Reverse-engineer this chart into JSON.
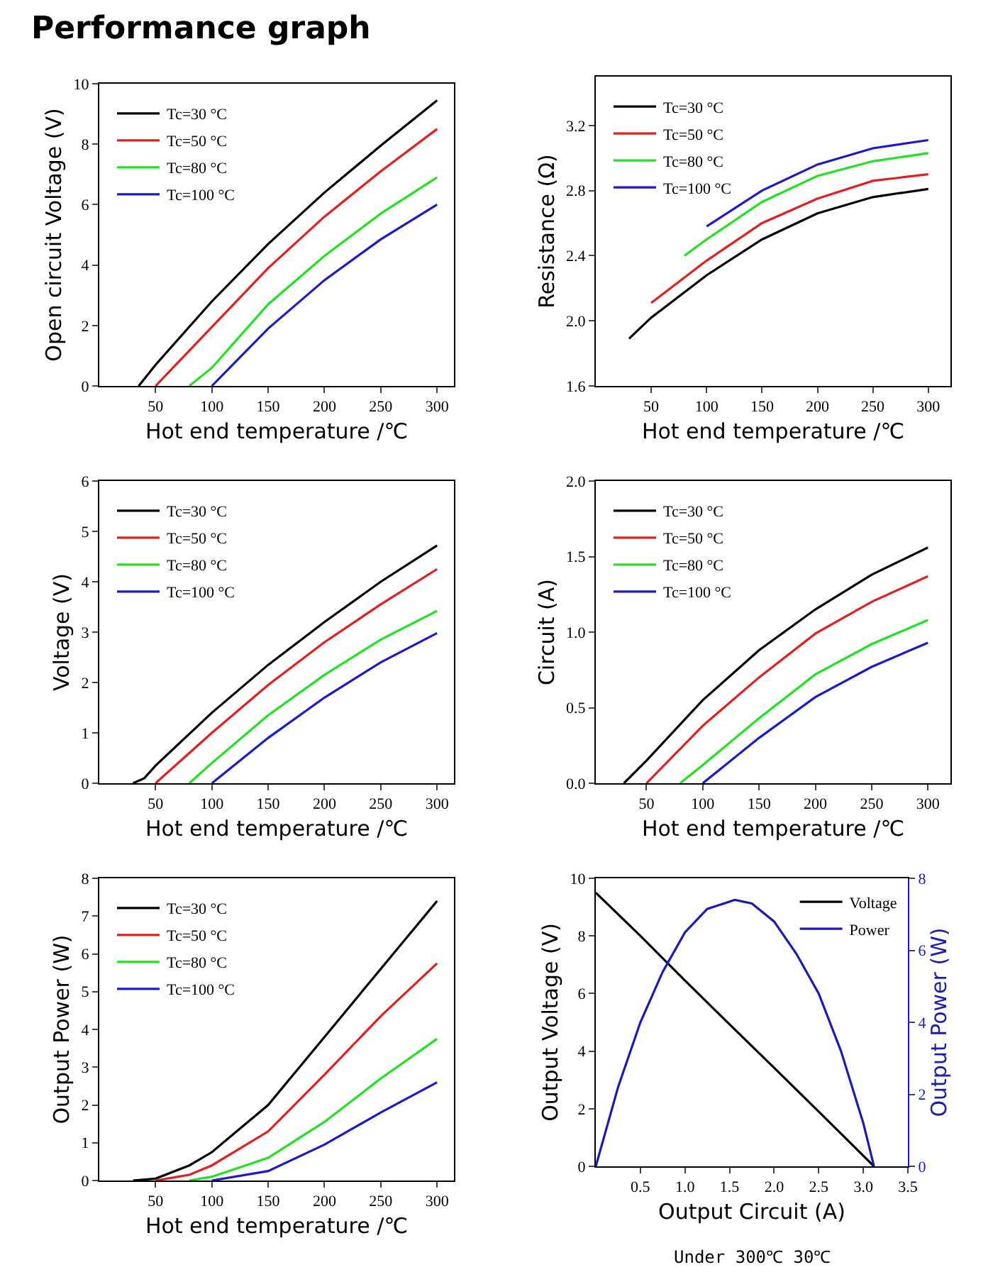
{
  "chart_data": [
    {
      "type": "line",
      "title": "Performance graph",
      "xlabel": "Hot end temperature /℃",
      "ylabel": "Open circuit Voltage (V)",
      "xlim": [
        0,
        315
      ],
      "xticks": [
        50,
        100,
        150,
        200,
        250,
        300
      ],
      "ylim": [
        0,
        10
      ],
      "yticks": [
        0,
        2,
        4,
        6,
        8,
        10
      ],
      "legend": "top left",
      "series": [
        {
          "name": "Tc=30 °C",
          "color": "#000000",
          "x": [
            35,
            50,
            100,
            150,
            200,
            250,
            300
          ],
          "values": [
            0,
            0.7,
            2.8,
            4.7,
            6.4,
            7.95,
            9.45
          ]
        },
        {
          "name": "Tc=50 °C",
          "color": "#e0201e",
          "x": [
            50,
            100,
            150,
            200,
            250,
            300
          ],
          "values": [
            0,
            1.95,
            3.9,
            5.6,
            7.1,
            8.5
          ]
        },
        {
          "name": "Tc=80 °C",
          "color": "#22e022",
          "x": [
            80,
            100,
            150,
            200,
            250,
            300
          ],
          "values": [
            0,
            0.6,
            2.7,
            4.3,
            5.7,
            6.9
          ]
        },
        {
          "name": "Tc=100 °C",
          "color": "#1a1ac8",
          "x": [
            100,
            150,
            200,
            250,
            300
          ],
          "values": [
            0,
            1.9,
            3.5,
            4.85,
            6.0
          ]
        }
      ]
    },
    {
      "type": "line",
      "xlabel": "Hot end temperature /℃",
      "ylabel": "Resistance (Ω)",
      "xlim": [
        0,
        320
      ],
      "xticks": [
        50,
        100,
        150,
        200,
        250,
        300
      ],
      "ylim": [
        1.6,
        3.5
      ],
      "yticks": [
        1.6,
        {
          "value": 2,
          "label": "2.0"
        },
        2.4,
        2.8,
        3.2
      ],
      "legend": "top left",
      "series": [
        {
          "name": "Tc=30 °C",
          "color": "#000000",
          "x": [
            30,
            50,
            100,
            150,
            200,
            250,
            300
          ],
          "values": [
            1.89,
            2.02,
            2.28,
            2.5,
            2.66,
            2.76,
            2.81
          ]
        },
        {
          "name": "Tc=50 °C",
          "color": "#e0201e",
          "x": [
            50,
            100,
            150,
            200,
            250,
            300
          ],
          "values": [
            2.11,
            2.37,
            2.6,
            2.75,
            2.86,
            2.9
          ]
        },
        {
          "name": "Tc=80 °C",
          "color": "#22e022",
          "x": [
            80,
            100,
            150,
            200,
            250,
            300
          ],
          "values": [
            2.4,
            2.5,
            2.73,
            2.89,
            2.98,
            3.03
          ]
        },
        {
          "name": "Tc=100 °C",
          "color": "#1a1ac8",
          "x": [
            100,
            150,
            200,
            250,
            300
          ],
          "values": [
            2.58,
            2.8,
            2.96,
            3.06,
            3.11
          ]
        }
      ]
    },
    {
      "type": "line",
      "xlabel": "Hot end temperature /℃",
      "ylabel": "Voltage (V)",
      "xlim": [
        0,
        315
      ],
      "xticks": [
        50,
        100,
        150,
        200,
        250,
        300
      ],
      "ylim": [
        0,
        6
      ],
      "yticks": [
        0,
        1,
        2,
        3,
        4,
        5,
        6
      ],
      "legend": "top left",
      "series": [
        {
          "name": "Tc=30 °C",
          "color": "#000000",
          "x": [
            30,
            40,
            50,
            100,
            150,
            200,
            250,
            300
          ],
          "values": [
            0,
            0.1,
            0.35,
            1.4,
            2.35,
            3.2,
            4.0,
            4.72
          ]
        },
        {
          "name": "Tc=50 °C",
          "color": "#e0201e",
          "x": [
            50,
            100,
            150,
            200,
            250,
            300
          ],
          "values": [
            0,
            1.0,
            1.95,
            2.8,
            3.55,
            4.25
          ]
        },
        {
          "name": "Tc=80 °C",
          "color": "#22e022",
          "x": [
            80,
            100,
            150,
            200,
            250,
            300
          ],
          "values": [
            0,
            0.4,
            1.35,
            2.15,
            2.85,
            3.42
          ]
        },
        {
          "name": "Tc=100 °C",
          "color": "#1a1ac8",
          "x": [
            100,
            150,
            200,
            250,
            300
          ],
          "values": [
            0,
            0.9,
            1.7,
            2.4,
            2.98
          ]
        }
      ]
    },
    {
      "type": "line",
      "xlabel": "Hot end temperature /℃",
      "ylabel": "Circuit (A)",
      "xlim": [
        5,
        320
      ],
      "xticks": [
        50,
        100,
        150,
        200,
        250,
        300
      ],
      "ylim": [
        0,
        2
      ],
      "yticks": [
        {
          "value": 0,
          "label": "0.0"
        },
        0.5,
        {
          "value": 1,
          "label": "1.0"
        },
        1.5,
        {
          "value": 2,
          "label": "2.0"
        }
      ],
      "legend": "top left",
      "series": [
        {
          "name": "Tc=30 °C",
          "color": "#000000",
          "x": [
            30,
            50,
            100,
            150,
            200,
            250,
            300
          ],
          "values": [
            0,
            0.15,
            0.55,
            0.88,
            1.15,
            1.38,
            1.56
          ]
        },
        {
          "name": "Tc=50 °C",
          "color": "#e0201e",
          "x": [
            50,
            100,
            150,
            200,
            250,
            300
          ],
          "values": [
            0,
            0.38,
            0.7,
            0.99,
            1.2,
            1.37
          ]
        },
        {
          "name": "Tc=80 °C",
          "color": "#22e022",
          "x": [
            80,
            100,
            150,
            200,
            250,
            300
          ],
          "values": [
            0,
            0.12,
            0.43,
            0.72,
            0.92,
            1.08
          ]
        },
        {
          "name": "Tc=100 °C",
          "color": "#1a1ac8",
          "x": [
            100,
            150,
            200,
            250,
            300
          ],
          "values": [
            0,
            0.3,
            0.57,
            0.77,
            0.93
          ]
        }
      ]
    },
    {
      "type": "line",
      "xlabel": "Hot end temperature /℃",
      "ylabel": "Output Power (W)",
      "xlim": [
        0,
        315
      ],
      "xticks": [
        50,
        100,
        150,
        200,
        250,
        300
      ],
      "ylim": [
        0,
        8
      ],
      "yticks": [
        0,
        1,
        2,
        3,
        4,
        5,
        6,
        7,
        8
      ],
      "legend": "top left",
      "series": [
        {
          "name": "Tc=30 °C",
          "color": "#000000",
          "x": [
            30,
            50,
            80,
            100,
            150,
            200,
            250,
            300
          ],
          "values": [
            0,
            0.05,
            0.4,
            0.75,
            2.0,
            3.8,
            5.6,
            7.4
          ]
        },
        {
          "name": "Tc=50 °C",
          "color": "#e0201e",
          "x": [
            50,
            80,
            100,
            150,
            200,
            250,
            300
          ],
          "values": [
            0,
            0.15,
            0.4,
            1.3,
            2.8,
            4.35,
            5.75
          ]
        },
        {
          "name": "Tc=80 °C",
          "color": "#22e022",
          "x": [
            80,
            100,
            150,
            200,
            250,
            300
          ],
          "values": [
            0,
            0.1,
            0.6,
            1.55,
            2.7,
            3.75
          ]
        },
        {
          "name": "Tc=100 °C",
          "color": "#1a1ac8",
          "x": [
            100,
            150,
            200,
            250,
            300
          ],
          "values": [
            0,
            0.25,
            0.95,
            1.8,
            2.6
          ]
        }
      ]
    },
    {
      "type": "line",
      "xlabel": "Output Circuit (A)",
      "ylabel": "Output Voltage (V)",
      "y2label": "Output Power (W)",
      "xlim": [
        0,
        3.5
      ],
      "xticks": [
        0.5,
        {
          "value": 1,
          "label": "1.0"
        },
        1.5,
        {
          "value": 2,
          "label": "2.0"
        },
        2.5,
        {
          "value": 3,
          "label": "3.0"
        },
        3.5
      ],
      "ylim": [
        0,
        10
      ],
      "yticks": [
        0,
        2,
        4,
        6,
        8,
        10
      ],
      "y2lim": [
        0,
        8
      ],
      "y2ticks": [
        0,
        2,
        4,
        6,
        8
      ],
      "legend": "top right",
      "annotations": [
        "Under 300℃ 30℃"
      ],
      "series": [
        {
          "name": "Voltage",
          "color": "#000000",
          "x": [
            0,
            0.5,
            1,
            1.5,
            2,
            2.5,
            3.12
          ],
          "values": [
            9.5,
            8.0,
            6.45,
            4.93,
            3.42,
            1.9,
            0
          ]
        },
        {
          "name": "Power",
          "color": "#1a1ab4",
          "axis": "y2",
          "x": [
            0,
            0.25,
            0.5,
            0.75,
            1,
            1.25,
            1.56,
            1.75,
            2,
            2.25,
            2.5,
            2.75,
            3,
            3.12
          ],
          "values": [
            0,
            2.2,
            4.0,
            5.4,
            6.5,
            7.15,
            7.4,
            7.3,
            6.8,
            5.9,
            4.8,
            3.2,
            1.2,
            0
          ]
        }
      ]
    }
  ]
}
